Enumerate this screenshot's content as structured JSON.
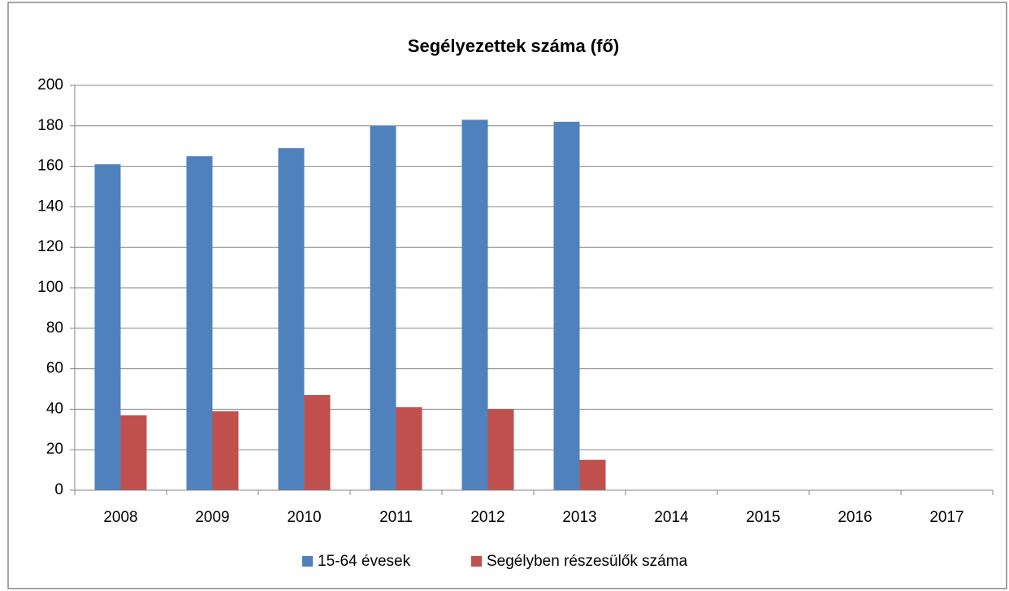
{
  "chart_data": {
    "type": "bar",
    "title": "Segélyezettek száma (fő)",
    "categories": [
      "2008",
      "2009",
      "2010",
      "2011",
      "2012",
      "2013",
      "2014",
      "2015",
      "2016",
      "2017"
    ],
    "series": [
      {
        "name": "15-64 évesek",
        "color": "#4f81bd",
        "values": [
          161,
          165,
          169,
          180,
          183,
          182,
          null,
          null,
          null,
          null
        ]
      },
      {
        "name": "Segélyben részesülők száma",
        "color": "#c0504d",
        "values": [
          37,
          39,
          47,
          41,
          40,
          15,
          null,
          null,
          null,
          null
        ]
      }
    ],
    "ylim": [
      0,
      200
    ],
    "yticks": [
      0,
      20,
      40,
      60,
      80,
      100,
      120,
      140,
      160,
      180,
      200
    ],
    "grid": true,
    "legend": "bottom"
  }
}
